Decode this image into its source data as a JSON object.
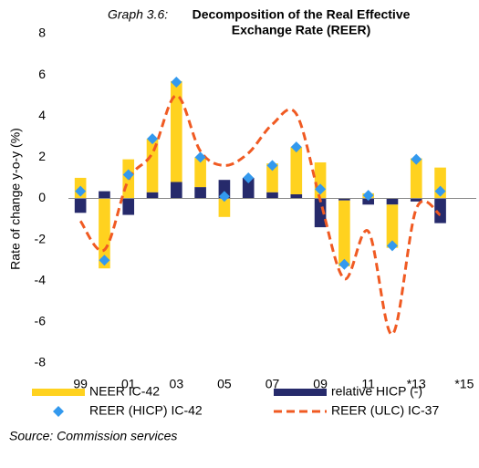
{
  "chart_data": {
    "type": "bar",
    "title_label": "Graph 3.6:",
    "title_lines": [
      "Decomposition of the Real Effective",
      "Exchange Rate (REER)"
    ],
    "y_label": "Rate of change y-o-y (%)",
    "source": "Source: Commission services",
    "categories": [
      "99",
      null,
      "01",
      null,
      "03",
      null,
      "05",
      null,
      "07",
      null,
      "09",
      null,
      "11",
      null,
      "*13",
      null,
      "*15"
    ],
    "ylim": [
      -8,
      8
    ],
    "yticks": [
      -8,
      -6,
      -4,
      -2,
      0,
      2,
      4,
      6,
      8
    ],
    "series": [
      {
        "name": "NEER IC-42",
        "color": "#ffd21f",
        "mark": "bar",
        "values": [
          1.0,
          -3.4,
          1.9,
          2.6,
          4.9,
          1.45,
          -0.9,
          0,
          1.4,
          2.3,
          1.75,
          -3.2,
          0.25,
          -2.1,
          1.95,
          1.5,
          null
        ]
      },
      {
        "name": "relative HICP (-)",
        "color": "#262a6b",
        "mark": "bar",
        "values": [
          -0.7,
          0.35,
          -0.8,
          0.3,
          0.8,
          0.55,
          0.9,
          1.0,
          0.3,
          0.2,
          -1.4,
          -0.1,
          -0.3,
          -0.3,
          -0.15,
          -1.2,
          null
        ]
      },
      {
        "name": "REER (HICP) IC-42",
        "color": "#3399ee",
        "mark": "diamond",
        "values": [
          0.35,
          -3.0,
          1.15,
          2.9,
          5.65,
          2.0,
          0.1,
          1.0,
          1.6,
          2.5,
          0.45,
          -3.2,
          0.15,
          -2.3,
          1.9,
          0.35,
          null
        ]
      },
      {
        "name": "REER (ULC) IC-37",
        "color": "#f05a22",
        "mark": "dashed-line",
        "values": [
          -1.1,
          -2.5,
          0.9,
          2.2,
          5.0,
          2.3,
          1.6,
          2.2,
          3.6,
          4.1,
          -0.1,
          -3.9,
          -1.6,
          -6.6,
          -0.5,
          -0.8,
          null
        ]
      }
    ]
  }
}
